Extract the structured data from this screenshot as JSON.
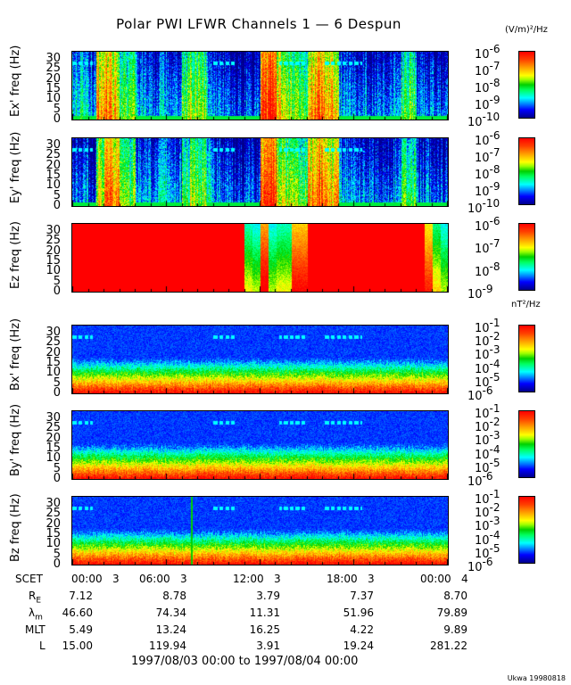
{
  "title": "Polar PWI LFWR Channels 1 — 6 Despun",
  "electric_unit": "(V/m)²/Hz",
  "magnetic_unit": "nT²/Hz",
  "chart_data": [
    {
      "type": "heatmap",
      "ylabel": "Ex' freq (Hz)",
      "yticks": [
        "0",
        "5",
        "10",
        "15",
        "20",
        "25",
        "30"
      ],
      "ylim": [
        0,
        30
      ],
      "xlim_hours": [
        0,
        24
      ],
      "colorbar_ticks": [
        "-10",
        "-9",
        "-8",
        "-7",
        "-6"
      ],
      "colorscale": "log10 rainbow",
      "colorbar_range": [
        1e-10,
        1e-06
      ]
    },
    {
      "type": "heatmap",
      "ylabel": "Ey' freq (Hz)",
      "yticks": [
        "0",
        "5",
        "10",
        "15",
        "20",
        "25",
        "30"
      ],
      "ylim": [
        0,
        30
      ],
      "xlim_hours": [
        0,
        24
      ],
      "colorbar_ticks": [
        "-10",
        "-9",
        "-8",
        "-7",
        "-6"
      ],
      "colorscale": "log10 rainbow",
      "colorbar_range": [
        1e-10,
        1e-06
      ]
    },
    {
      "type": "heatmap",
      "ylabel": "Ez freq (Hz)",
      "yticks": [
        "0",
        "5",
        "10",
        "15",
        "20",
        "25",
        "30"
      ],
      "ylim": [
        0,
        30
      ],
      "xlim_hours": [
        0,
        24
      ],
      "colorbar_ticks": [
        "-9",
        "-8",
        "-7",
        "-6"
      ],
      "colorscale": "log10 rainbow",
      "colorbar_range": [
        1e-09,
        1e-06
      ]
    },
    {
      "type": "heatmap",
      "ylabel": "Bx' freq (Hz)",
      "yticks": [
        "0",
        "5",
        "10",
        "15",
        "20",
        "25",
        "30"
      ],
      "ylim": [
        0,
        30
      ],
      "xlim_hours": [
        0,
        24
      ],
      "colorbar_ticks": [
        "-6",
        "-5",
        "-4",
        "-3",
        "-2",
        "-1"
      ],
      "colorscale": "log10 rainbow",
      "colorbar_range": [
        1e-06,
        0.1
      ]
    },
    {
      "type": "heatmap",
      "ylabel": "By' freq (Hz)",
      "yticks": [
        "0",
        "5",
        "10",
        "15",
        "20",
        "25",
        "30"
      ],
      "ylim": [
        0,
        30
      ],
      "xlim_hours": [
        0,
        24
      ],
      "colorbar_ticks": [
        "-6",
        "-5",
        "-4",
        "-3",
        "-2",
        "-1"
      ],
      "colorscale": "log10 rainbow",
      "colorbar_range": [
        1e-06,
        0.1
      ]
    },
    {
      "type": "heatmap",
      "ylabel": "Bz freq (Hz)",
      "yticks": [
        "0",
        "5",
        "10",
        "15",
        "20",
        "25",
        "30"
      ],
      "ylim": [
        0,
        30
      ],
      "xlim_hours": [
        0,
        24
      ],
      "colorbar_ticks": [
        "-6",
        "-5",
        "-4",
        "-3",
        "-2",
        "-1"
      ],
      "colorscale": "log10 rainbow",
      "colorbar_range": [
        1e-06,
        0.1
      ]
    }
  ],
  "ephemeris": {
    "rows": [
      {
        "label": "SCET",
        "values": [
          "00:00   3",
          "06:00   3",
          "12:00   3",
          "18:00   3",
          "00:00   4"
        ]
      },
      {
        "label": "R",
        "sub": "E",
        "values": [
          "7.12",
          "8.78",
          "3.79",
          "7.37",
          "8.70"
        ]
      },
      {
        "label": "λ",
        "sub": "m",
        "values": [
          "46.60",
          "74.34",
          "11.31",
          "51.96",
          "79.89"
        ]
      },
      {
        "label": "MLT",
        "sub": "",
        "values": [
          "5.49",
          "13.24",
          "16.25",
          "4.22",
          "9.89"
        ]
      },
      {
        "label": "L",
        "sub": "",
        "values": [
          "15.00",
          "119.94",
          "3.91",
          "19.24",
          "281.22"
        ]
      }
    ],
    "range": "1997/08/03 00:00 to 1997/08/04 00:00"
  },
  "credit": "Ukwa 19980818",
  "colorbar_base": "10"
}
